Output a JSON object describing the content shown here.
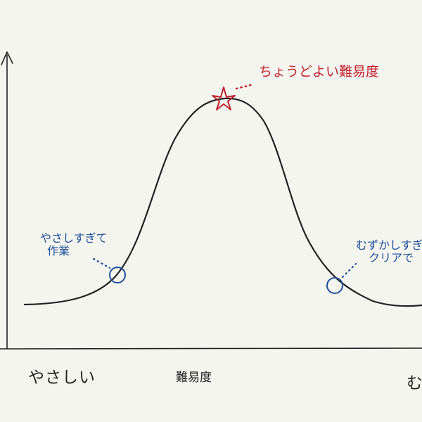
{
  "axis": {
    "x_label": "難易度",
    "left_end_label": "やさしい",
    "right_end_label": "む"
  },
  "annotations": {
    "peak": "ちょうどよい難易度",
    "easy": [
      "やさしすぎて",
      "作業"
    ],
    "hard": [
      "むずかしすぎ",
      "クリアで"
    ]
  },
  "colors": {
    "ink": "#222222",
    "peak_mark": "#c0202f",
    "circle_mark": "#1f4f9a",
    "background": "#f5f5f0"
  }
}
